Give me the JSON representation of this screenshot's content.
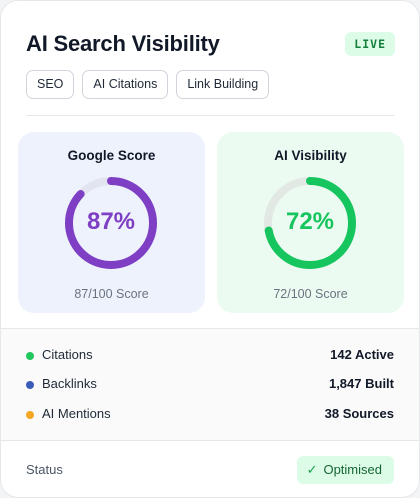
{
  "header": {
    "title": "AI Search Visibility",
    "live_badge": "LIVE"
  },
  "tags": [
    "SEO",
    "AI Citations",
    "Link Building"
  ],
  "scores": [
    {
      "label": "Google Score",
      "value_text": "87%",
      "value": 87,
      "caption": "87/100 Score",
      "color": "#7e3fc4",
      "track_color": "#e2e4f0"
    },
    {
      "label": "AI Visibility",
      "value_text": "72%",
      "value": 72,
      "caption": "72/100 Score",
      "color": "#16c55e",
      "track_color": "#e2e8e3"
    }
  ],
  "metrics": [
    {
      "name": "Citations",
      "value": "142 Active",
      "dot_color": "#22c55e"
    },
    {
      "name": "Backlinks",
      "value": "1,847 Built",
      "dot_color": "#3b5bb8"
    },
    {
      "name": "AI Mentions",
      "value": "38 Sources",
      "dot_color": "#f5a623"
    }
  ],
  "status": {
    "label": "Status",
    "badge": "Optimised",
    "icon": "check-icon"
  }
}
